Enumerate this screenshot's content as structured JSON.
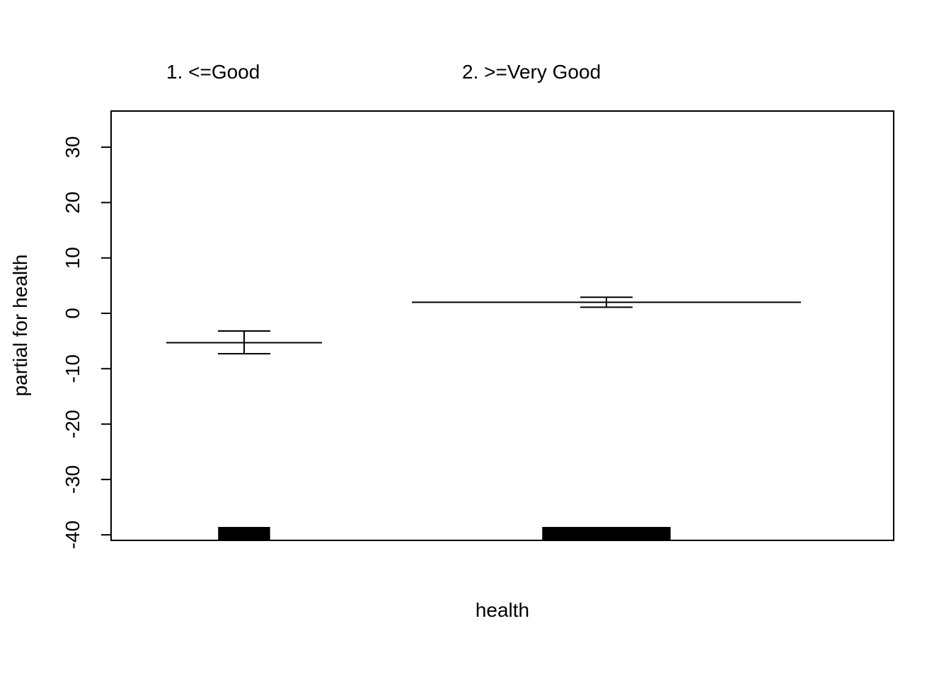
{
  "chart_data": {
    "type": "bar",
    "title": "",
    "xlabel": "health",
    "ylabel": "partial for health",
    "ylim": [
      -40,
      36
    ],
    "yticks": [
      -40,
      -30,
      -20,
      -10,
      0,
      10,
      20,
      30
    ],
    "yticks_labels": [
      "-40",
      "-30",
      "-20",
      "-10",
      "0",
      "10",
      "20",
      "30"
    ],
    "grid": false,
    "categories": [
      "1. <=Good",
      "2. >=Very Good"
    ],
    "estimates": [
      -5.3,
      2.0
    ],
    "ci_lower": [
      -7.3,
      1.1
    ],
    "ci_upper": [
      -3.2,
      2.9
    ],
    "rug_width_fraction": [
      0.34,
      0.84
    ],
    "colors": {
      "line": "#000000",
      "rug": "#000000",
      "background": "#ffffff"
    }
  }
}
